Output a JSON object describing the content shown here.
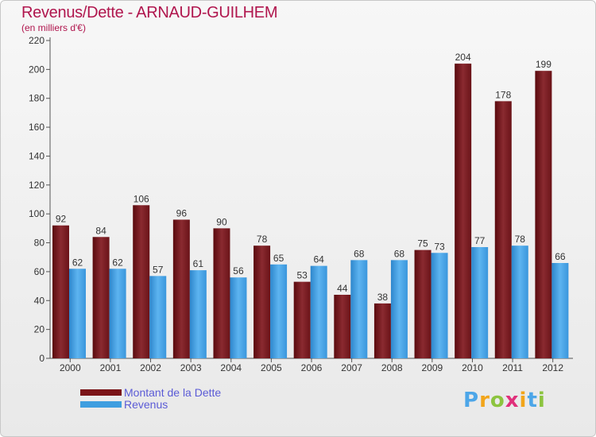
{
  "title": "Revenus/Dette - ARNAUD-GUILHEM",
  "subtitle": "(en milliers d'€)",
  "colors": {
    "debt": "#7a1418",
    "revenue": "#3f9ee0",
    "title": "#b0154d",
    "legend_text": "#5b5bd6"
  },
  "legend": {
    "debt_label": "Montant de la Dette",
    "revenue_label": "Revenus"
  },
  "logo": {
    "text": "Proxiti",
    "letters": [
      "P",
      "r",
      "o",
      "x",
      "i",
      "t",
      "i"
    ],
    "colors": [
      "#4da6e8",
      "#f2a51a",
      "#8cc43f",
      "#e0307b",
      "#f2a51a",
      "#4da6e8",
      "#8cc43f"
    ]
  },
  "chart_data": {
    "type": "bar",
    "categories": [
      "2000",
      "2001",
      "2002",
      "2003",
      "2004",
      "2005",
      "2006",
      "2007",
      "2008",
      "2009",
      "2010",
      "2011",
      "2012"
    ],
    "series": [
      {
        "name": "Montant de la Dette",
        "values": [
          92,
          84,
          106,
          96,
          90,
          78,
          53,
          44,
          38,
          75,
          204,
          178,
          199
        ]
      },
      {
        "name": "Revenus",
        "values": [
          62,
          62,
          57,
          61,
          56,
          65,
          64,
          68,
          68,
          73,
          77,
          78,
          66
        ]
      }
    ],
    "ylim": [
      0,
      220
    ],
    "yticks": [
      0,
      20,
      40,
      60,
      80,
      100,
      120,
      140,
      160,
      180,
      200,
      220
    ],
    "grid": false,
    "legend_position": "bottom-left"
  }
}
